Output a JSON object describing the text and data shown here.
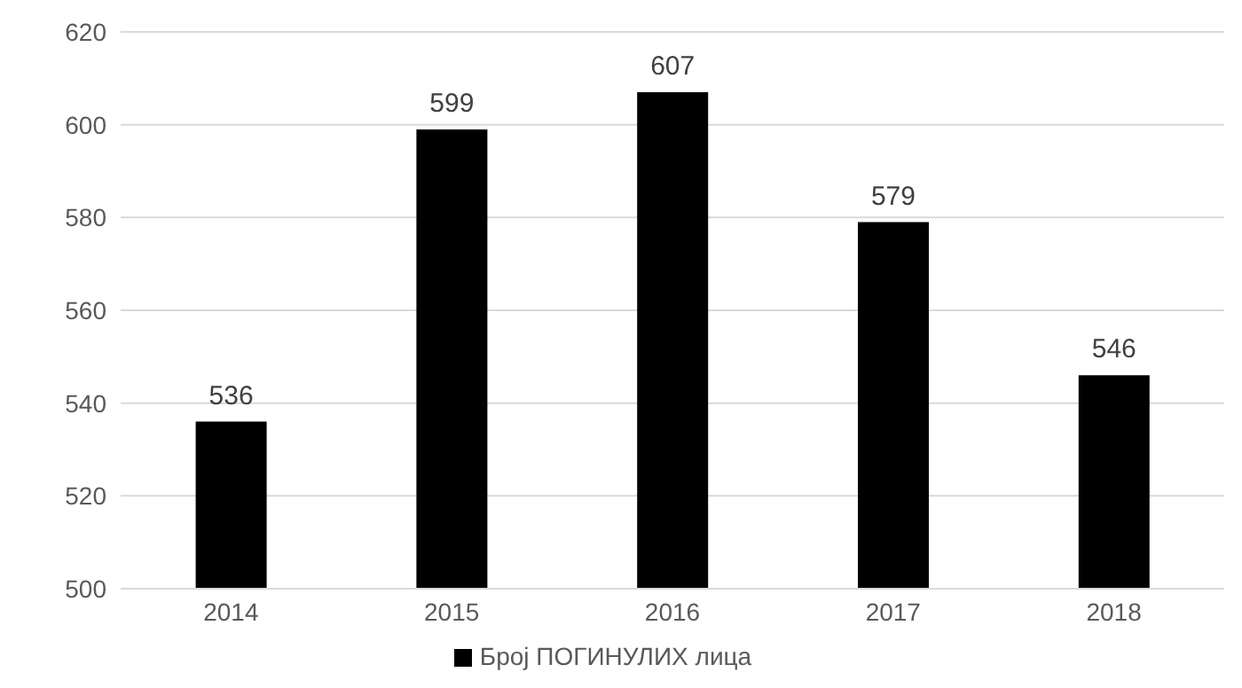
{
  "chart_data": {
    "type": "bar",
    "categories": [
      "2014",
      "2015",
      "2016",
      "2017",
      "2018"
    ],
    "series": [
      {
        "name": "Број ПОГИНУЛИХ лица",
        "color": "#000000",
        "values": [
          536,
          599,
          607,
          579,
          546
        ]
      }
    ],
    "ylim": [
      500,
      620
    ],
    "yticks": [
      500,
      520,
      540,
      560,
      580,
      600,
      620
    ],
    "grid": "y",
    "legend": "bottom",
    "data_labels": true
  }
}
